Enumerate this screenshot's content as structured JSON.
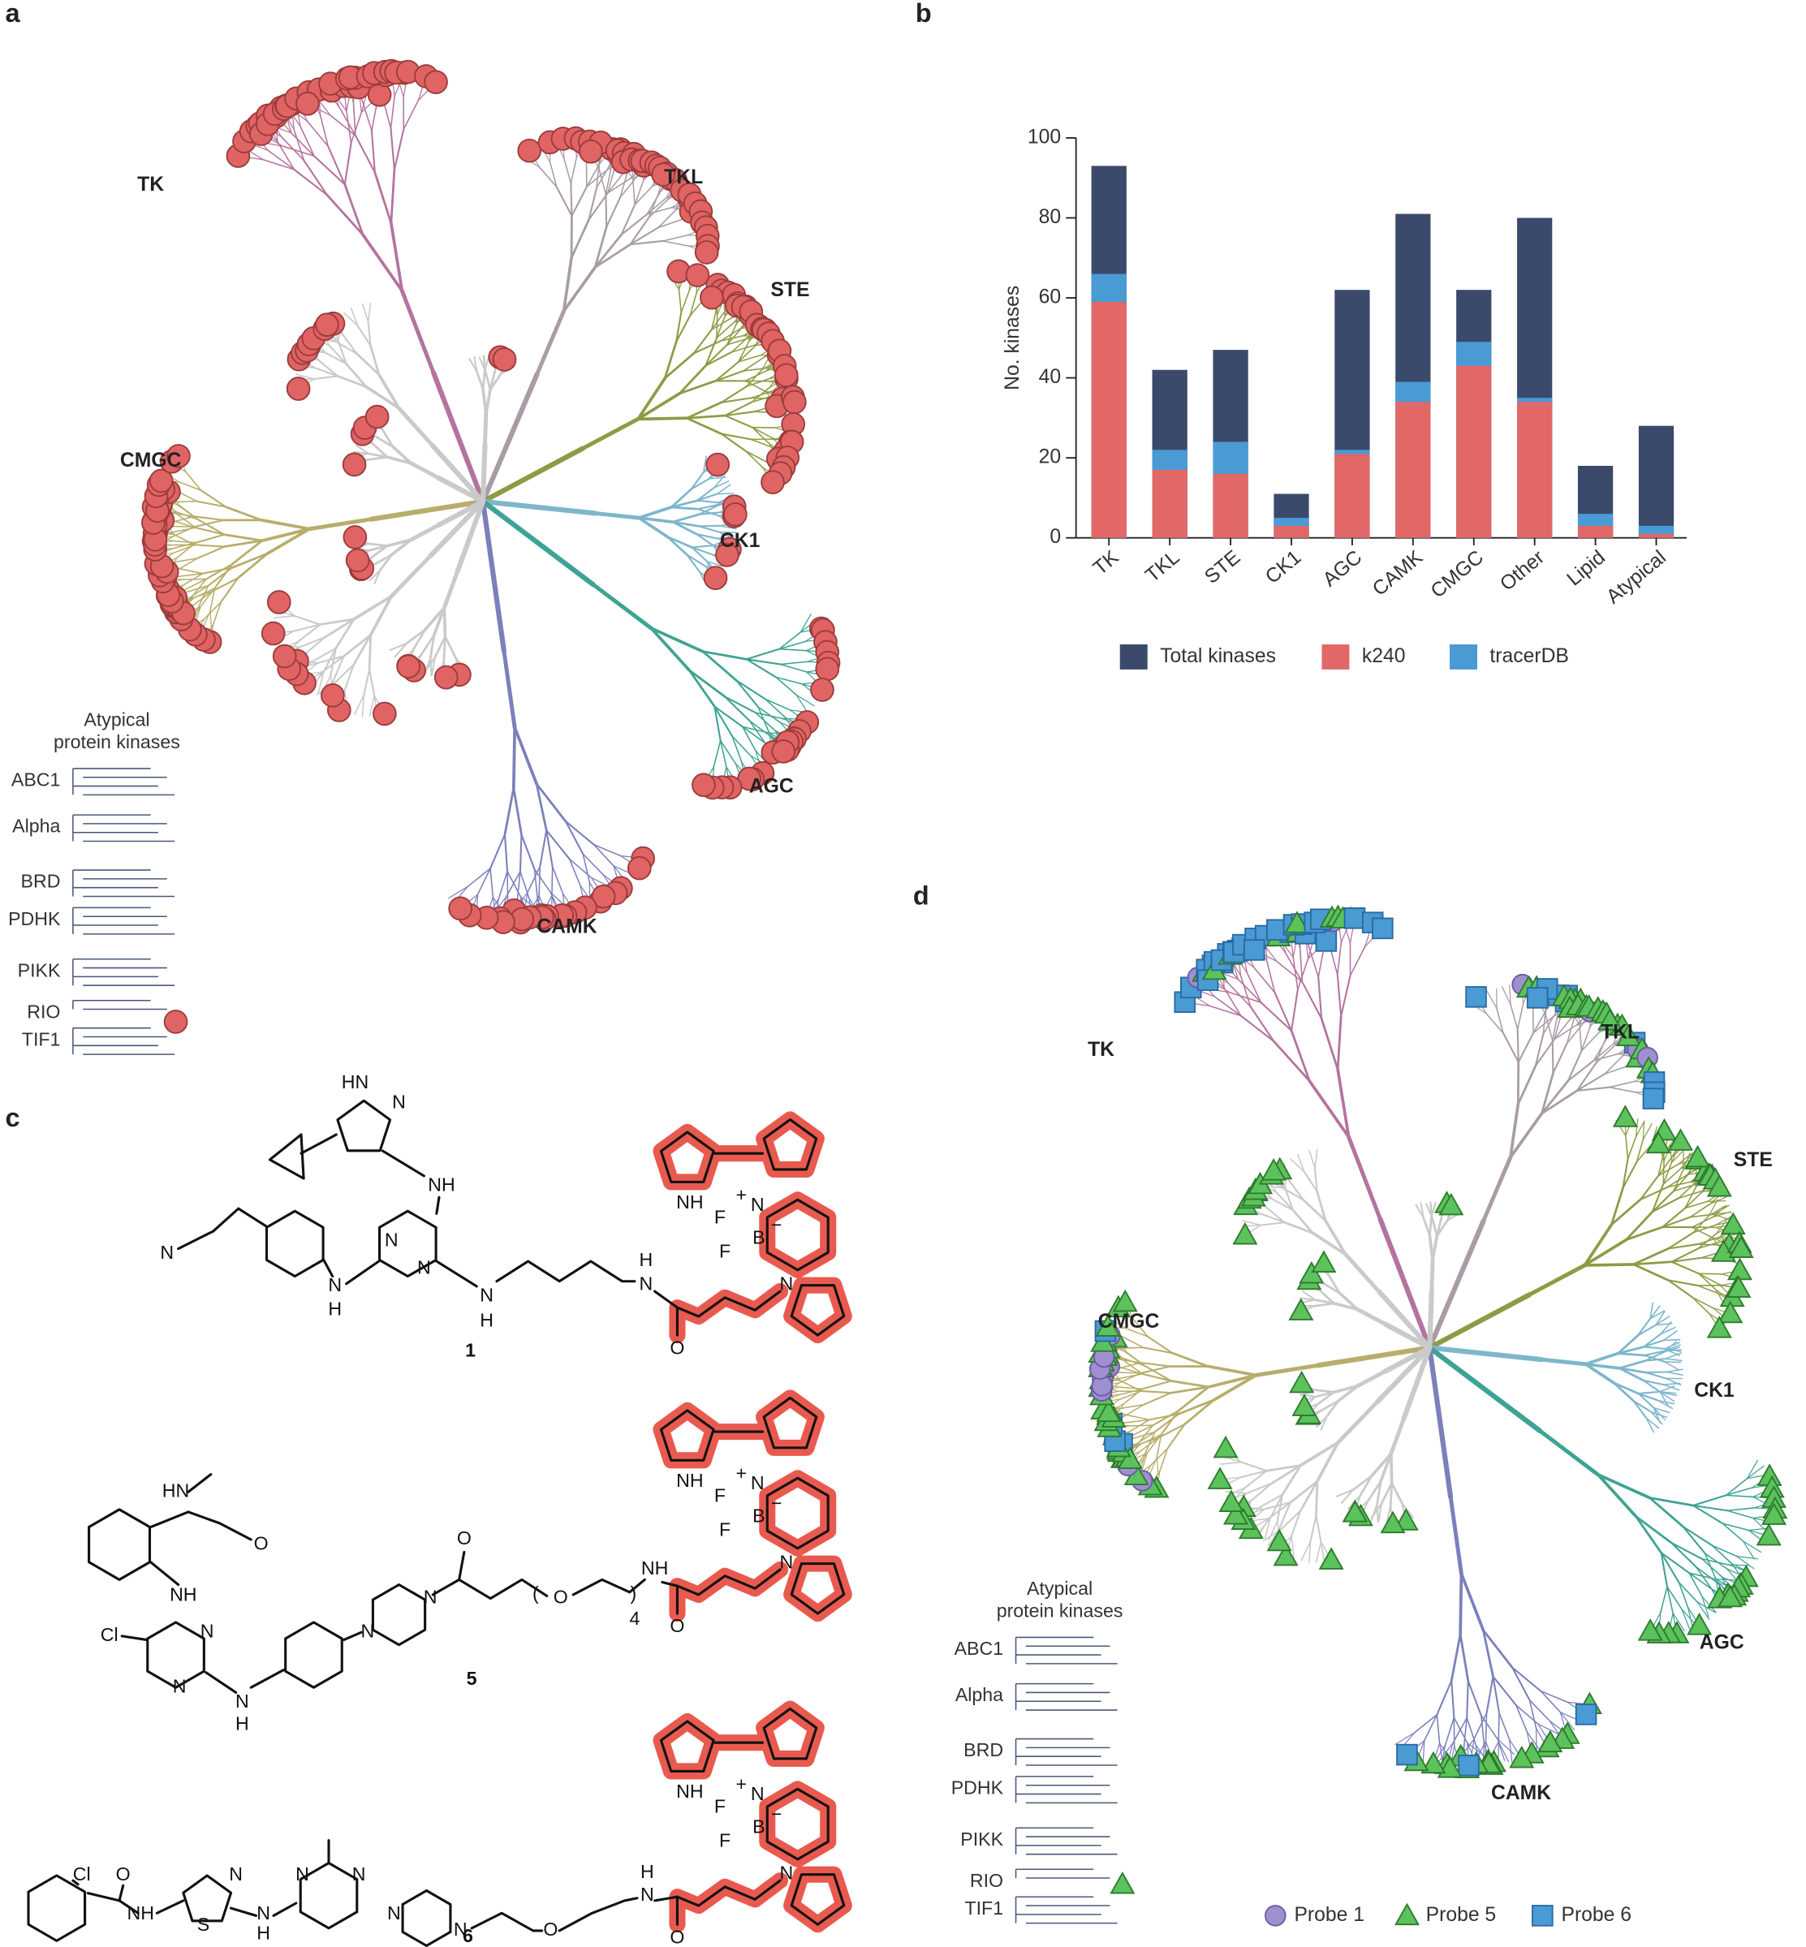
{
  "panel_labels": [
    "a",
    "b",
    "c",
    "d"
  ],
  "panel_a": {
    "group_labels": [
      "TK",
      "TKL",
      "STE",
      "CMGC",
      "CK1",
      "AGC",
      "CAMK"
    ],
    "atypical_title": [
      "Atypical",
      "protein kinases"
    ],
    "atypical_families": [
      "ABC1",
      "Alpha",
      "BRD",
      "PDHK",
      "PIKK",
      "RIO",
      "TIF1"
    ]
  },
  "chart_data": {
    "type": "bar",
    "barmode": "overlay",
    "y_label": "No. kinases",
    "categories": [
      "TK",
      "TKL",
      "STE",
      "CK1",
      "AGC",
      "CAMK",
      "CMGC",
      "Other",
      "Lipid",
      "Atypical"
    ],
    "series": [
      {
        "name": "Total kinases",
        "color": "#3b4a6b",
        "values": [
          93,
          42,
          47,
          11,
          62,
          81,
          62,
          80,
          18,
          28
        ]
      },
      {
        "name": "tracerDB",
        "color": "#4a9ad4",
        "values": [
          66,
          22,
          24,
          5,
          22,
          39,
          49,
          35,
          6,
          3
        ]
      },
      {
        "name": "k240",
        "color": "#e26868",
        "values": [
          59,
          17,
          16,
          3,
          21,
          34,
          43,
          34,
          3,
          1
        ]
      }
    ],
    "legend_order": [
      0,
      2,
      1
    ],
    "ylim": [
      0,
      100
    ],
    "yticks": [
      0,
      20,
      40,
      60,
      80,
      100
    ],
    "legend": "bottom",
    "grid": false
  },
  "panel_c": {
    "molecules": [
      {
        "number": "1",
        "atoms": [
          "HN",
          "N",
          "NH",
          "N",
          "N",
          "N",
          "N",
          "H",
          "N",
          "H",
          "H",
          "N",
          "NH",
          "+",
          "N",
          "F",
          "B",
          "−",
          "F",
          "N",
          "O"
        ]
      },
      {
        "number": "5",
        "atoms": [
          "HN",
          "O",
          "NH",
          "Cl",
          "N",
          "N",
          "N",
          "H",
          "N",
          "N",
          "O",
          "(",
          "O",
          ")",
          "4",
          "NH",
          "NH",
          "+",
          "N",
          "F",
          "B",
          "−",
          "F",
          "N",
          "O"
        ]
      },
      {
        "number": "6",
        "atoms": [
          "Cl",
          "O",
          "NH",
          "S",
          "N",
          "N",
          "H",
          "N",
          "N",
          "N",
          "N",
          "O",
          "N",
          "H",
          "NH",
          "+",
          "N",
          "F",
          "B",
          "−",
          "F",
          "N",
          "O"
        ]
      }
    ]
  },
  "panel_d": {
    "group_labels": [
      "TK",
      "TKL",
      "STE",
      "CMGC",
      "CK1",
      "AGC",
      "CAMK"
    ],
    "atypical_title": [
      "Atypical",
      "protein kinases"
    ],
    "atypical_families": [
      "ABC1",
      "Alpha",
      "BRD",
      "PDHK",
      "PIKK",
      "RIO",
      "TIF1"
    ],
    "legend": [
      "Probe 1",
      "Probe 5",
      "Probe 6"
    ]
  }
}
